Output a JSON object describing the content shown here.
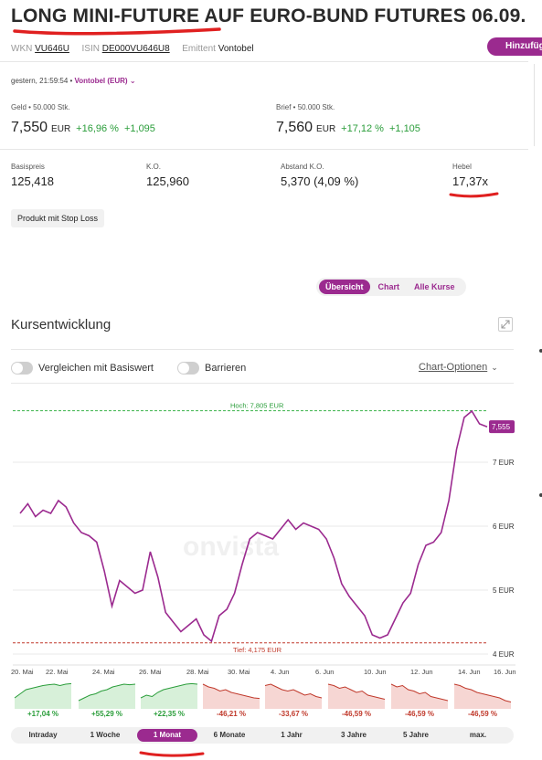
{
  "header": {
    "title": "LONG MINI-FUTURE AUF EURO-BUND FUTURES 06.09.",
    "wkn_label": "WKN",
    "wkn": "VU646U",
    "isin_label": "ISIN",
    "isin": "DE000VU646U8",
    "issuer_label": "Emittent",
    "issuer": "Vontobel",
    "add_button": "Hinzufüg"
  },
  "quote": {
    "timestamp": "gestern, 21:59:54 •",
    "source": "Vontobel (EUR)",
    "bid_label": "Geld • 50.000 Stk.",
    "bid_value": "7,550",
    "bid_currency": "EUR",
    "bid_change_pct": "+16,96 %",
    "bid_change_abs": "+1,095",
    "ask_label": "Brief • 50.000 Stk.",
    "ask_value": "7,560",
    "ask_currency": "EUR",
    "ask_change_pct": "+17,12 %",
    "ask_change_abs": "+1,105"
  },
  "keyfacts": [
    {
      "label": "Basispreis",
      "value": "125,418"
    },
    {
      "label": "K.O.",
      "value": "125,960"
    },
    {
      "label": "Abstand K.O.",
      "value": "5,370 (4,09 %)"
    },
    {
      "label": "Hebel",
      "value": "17,37x"
    }
  ],
  "stoploss_button": "Produkt mit Stop Loss",
  "tabs": [
    {
      "label": "Übersicht",
      "active": true
    },
    {
      "label": "Chart",
      "active": false
    },
    {
      "label": "Alle Kurse",
      "active": false
    }
  ],
  "chart_section": {
    "title": "Kursentwicklung",
    "toggle_compare": "Vergleichen mit Basiswert",
    "toggle_barriers": "Barrieren",
    "chart_options": "Chart-Optionen",
    "watermark": "onvista"
  },
  "chart_data": {
    "type": "line",
    "high_label": "Hoch: 7,805 EUR",
    "low_label": "Tief: 4,175 EUR",
    "high": 7.805,
    "low": 4.175,
    "last_label": "7,555",
    "last": 7.555,
    "ylim": [
      4,
      8
    ],
    "y_ticks": [
      {
        "value": 4,
        "label": "4 EUR"
      },
      {
        "value": 5,
        "label": "5 EUR"
      },
      {
        "value": 6,
        "label": "6 EUR"
      },
      {
        "value": 7,
        "label": "7 EUR"
      }
    ],
    "x_ticks": [
      "20. Mai",
      "22. Mai",
      "24. Mai",
      "26. Mai",
      "28. Mai",
      "30. Mai",
      "4. Jun",
      "6. Jun",
      "10. Jun",
      "12. Jun",
      "14. Jun",
      "16. Jun"
    ],
    "values": [
      6.2,
      6.35,
      6.15,
      6.25,
      6.2,
      6.4,
      6.3,
      6.05,
      5.9,
      5.85,
      5.75,
      5.3,
      4.75,
      5.15,
      5.05,
      4.95,
      5.0,
      5.6,
      5.2,
      4.65,
      4.5,
      4.35,
      4.45,
      4.55,
      4.3,
      4.2,
      4.6,
      4.7,
      4.95,
      5.4,
      5.8,
      5.9,
      5.85,
      5.8,
      5.95,
      6.1,
      5.95,
      6.05,
      6.0,
      5.95,
      5.8,
      5.5,
      5.1,
      4.9,
      4.75,
      4.6,
      4.3,
      4.25,
      4.3,
      4.55,
      4.8,
      4.95,
      5.4,
      5.7,
      5.75,
      5.9,
      6.4,
      7.2,
      7.7,
      7.8,
      7.6,
      7.555
    ],
    "period_performance": [
      {
        "value": "+17,04 %",
        "positive": true
      },
      {
        "value": "+55,29 %",
        "positive": true
      },
      {
        "value": "+22,35 %",
        "positive": true
      },
      {
        "value": "-46,21 %",
        "positive": false
      },
      {
        "value": "-33,67 %",
        "positive": false
      },
      {
        "value": "-46,59 %",
        "positive": false
      },
      {
        "value": "-46,59 %",
        "positive": false
      },
      {
        "value": "-46,59 %",
        "positive": false
      }
    ]
  },
  "ranges": [
    {
      "label": "Intraday",
      "active": false
    },
    {
      "label": "1 Woche",
      "active": false
    },
    {
      "label": "1 Monat",
      "active": true
    },
    {
      "label": "6 Monate",
      "active": false
    },
    {
      "label": "1 Jahr",
      "active": false
    },
    {
      "label": "3 Jahre",
      "active": false
    },
    {
      "label": "5 Jahre",
      "active": false
    },
    {
      "label": "max.",
      "active": false
    }
  ],
  "colors": {
    "accent": "#9b2a8f",
    "positive": "#2a9d3a",
    "negative": "#c0392b",
    "annotation": "#e02020"
  }
}
